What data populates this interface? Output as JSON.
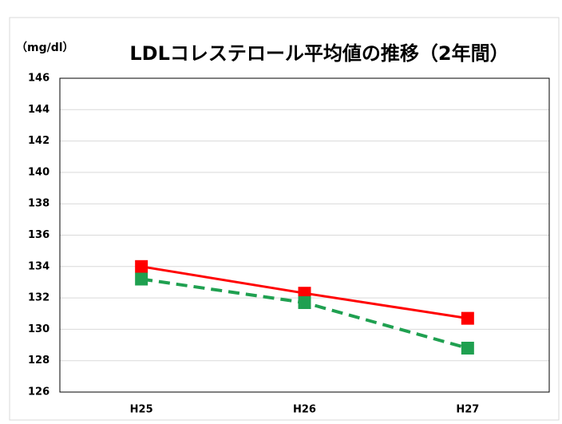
{
  "chart_data": {
    "type": "line",
    "title": "LDLコレステロール平均値の推移（2年間）",
    "y_label": "（mg/dl）",
    "categories": [
      "H25",
      "H26",
      "H27"
    ],
    "series": [
      {
        "color": "#ff0000",
        "dashed": false,
        "values": [
          134.0,
          132.3,
          130.7
        ]
      },
      {
        "color": "#1fa050",
        "dashed": true,
        "values": [
          133.2,
          131.7,
          128.8
        ]
      }
    ],
    "ylim": [
      126,
      146
    ],
    "yticks": [
      126,
      128,
      130,
      132,
      134,
      136,
      138,
      140,
      142,
      144,
      146
    ],
    "grid": true
  }
}
